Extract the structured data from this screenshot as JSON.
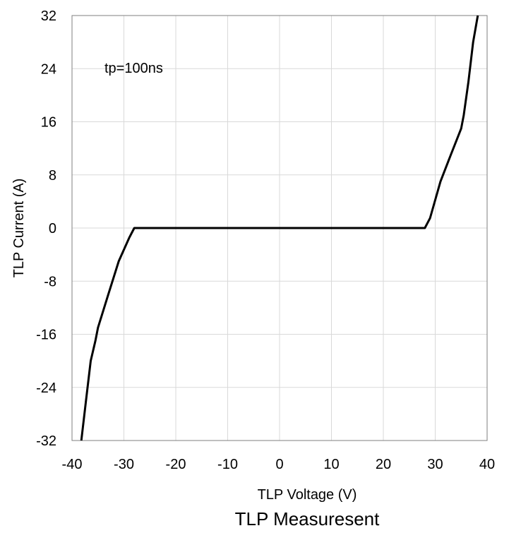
{
  "chart_data": {
    "type": "line",
    "title": "TLP Measuresent",
    "xlabel": "TLP Voltage (V)",
    "ylabel": "TLP Current (A)",
    "xlim": [
      -40,
      40
    ],
    "ylim": [
      -32,
      32
    ],
    "xticks": [
      -40,
      -30,
      -20,
      -10,
      0,
      10,
      20,
      30,
      40
    ],
    "yticks": [
      -32,
      -24,
      -16,
      -8,
      0,
      8,
      16,
      24,
      32
    ],
    "xtick_labels": [
      "-40",
      "-30",
      "-20",
      "-10",
      "0",
      "10",
      "20",
      "30",
      "40"
    ],
    "ytick_labels": [
      "-32",
      "-24",
      "-16",
      "-8",
      "0",
      "8",
      "16",
      "24",
      "32"
    ],
    "grid": true,
    "annotation": "tp=100ns",
    "line_color": "#000000",
    "grid_color": "#d9d9d9",
    "series": [
      {
        "x": [
          -38.2,
          -37.3,
          -36.4,
          -35.5,
          -35.0,
          -33.0,
          -31.0,
          -29.0,
          -28.0,
          -27.5,
          0.0,
          27.5,
          28.0,
          29.0,
          31.0,
          33.0,
          35.0,
          35.5,
          36.4,
          37.3,
          38.2
        ],
        "y": [
          -32,
          -26,
          -20,
          -17,
          -15,
          -10,
          -5,
          -1.5,
          0,
          0,
          0,
          0,
          0,
          1.5,
          7,
          11,
          15,
          17,
          22,
          28,
          32
        ]
      }
    ]
  }
}
